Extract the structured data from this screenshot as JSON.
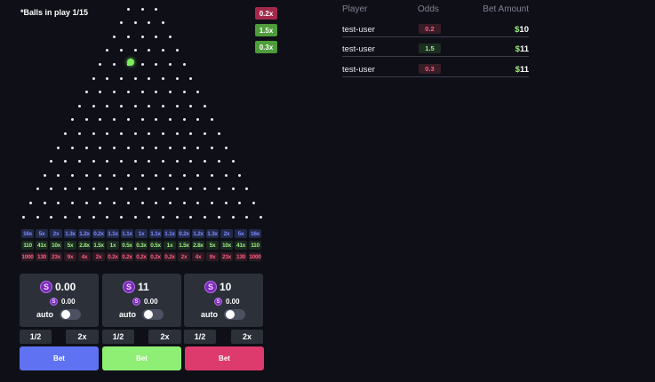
{
  "game": {
    "balls_label": "*Balls in play 1/15",
    "history": [
      {
        "label": "0.2x",
        "color": "#a3294b"
      },
      {
        "label": "1.5x",
        "color": "#4e9c3a"
      },
      {
        "label": "0.3x",
        "color": "#4e9c3a"
      }
    ],
    "multipliers": {
      "blue": [
        "16x",
        "5x",
        "2x",
        "1.3x",
        "1.2x",
        "0.2x",
        "1.1x",
        "1.1x",
        "1x",
        "1.1x",
        "1.1x",
        "0.2x",
        "1.2x",
        "1.3x",
        "2x",
        "5x",
        "16x"
      ],
      "green": [
        "110",
        "41x",
        "10x",
        "5x",
        "2.8x",
        "1.5x",
        "1x",
        "0.5x",
        "0.3x",
        "0.5x",
        "1x",
        "1.5x",
        "2.8x",
        "5x",
        "10x",
        "41x",
        "110"
      ],
      "red": [
        "1000",
        "130",
        "23x",
        "9x",
        "4x",
        "2x",
        "0.2x",
        "0.2x",
        "0.2x",
        "0.2x",
        "0.2x",
        "2x",
        "4x",
        "9x",
        "23x",
        "130",
        "1000"
      ]
    }
  },
  "panels": [
    {
      "coin": "S",
      "amount": "0.00",
      "sub_coin": "S",
      "sub_amount": "0.00",
      "auto_label": "auto",
      "half_label": "1/2",
      "double_label": "2x",
      "bet_label": "Bet",
      "bet_color": "#5f73f2"
    },
    {
      "coin": "S",
      "amount": "11",
      "sub_coin": "S",
      "sub_amount": "0.00",
      "auto_label": "auto",
      "half_label": "1/2",
      "double_label": "2x",
      "bet_label": "Bet",
      "bet_color": "#8eef74"
    },
    {
      "coin": "S",
      "amount": "10",
      "sub_coin": "S",
      "sub_amount": "0.00",
      "auto_label": "auto",
      "half_label": "1/2",
      "double_label": "2x",
      "bet_label": "Bet",
      "bet_color": "#dd3a6e"
    }
  ],
  "table": {
    "headers": {
      "player": "Player",
      "odds": "Odds",
      "amount": "Bet Amount"
    },
    "rows": [
      {
        "player": "test-user",
        "odds": "0.2",
        "odds_color": "#ff5d7f",
        "odds_bg": "#3a1c27",
        "currency": "$",
        "amount": "10"
      },
      {
        "player": "test-user",
        "odds": "1.5",
        "odds_color": "#9cf07f",
        "odds_bg": "#1d2e22",
        "currency": "$",
        "amount": "11"
      },
      {
        "player": "test-user",
        "odds": "0.3",
        "odds_color": "#ff5d7f",
        "odds_bg": "#3a1c27",
        "currency": "$",
        "amount": "11"
      }
    ]
  }
}
